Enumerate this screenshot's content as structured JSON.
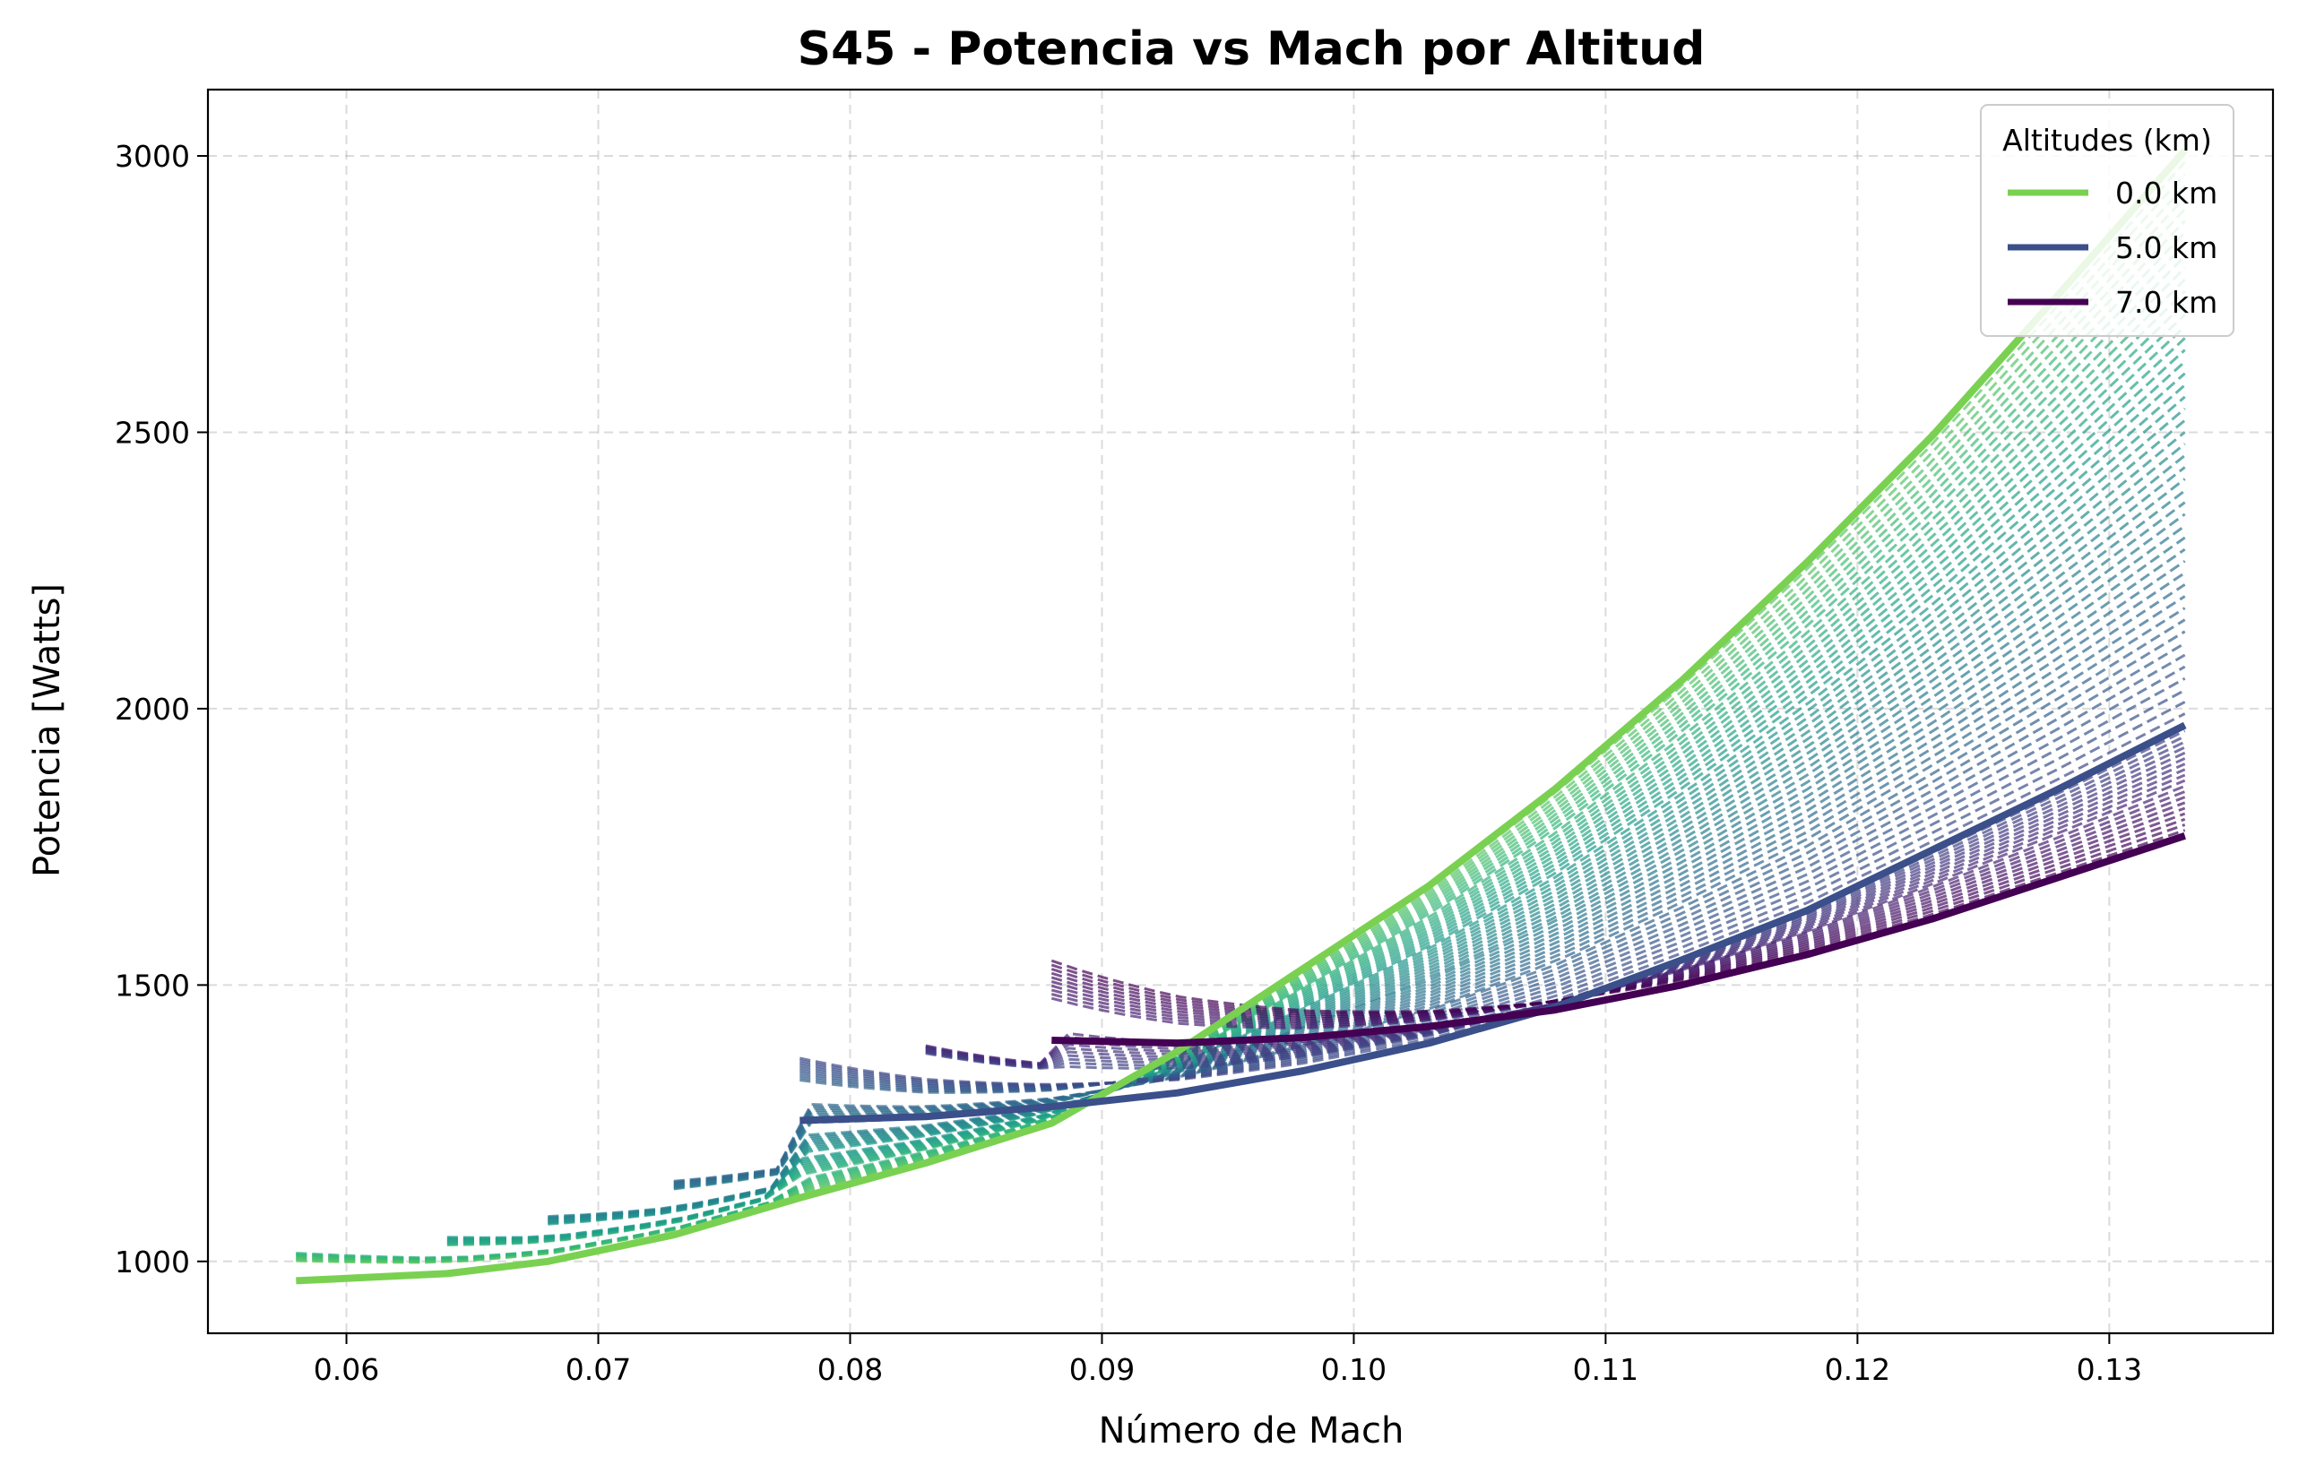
{
  "chart_data": {
    "type": "line",
    "title": "S45 - Potencia vs Mach por Altitud",
    "xlabel": "Número de Mach",
    "ylabel": "Potencia [Watts]",
    "xlim": [
      0.0545,
      0.1365
    ],
    "ylim": [
      870,
      3120
    ],
    "xticks": [
      0.06,
      0.07,
      0.08,
      0.09,
      0.1,
      0.11,
      0.12,
      0.13
    ],
    "xtick_labels": [
      "0.06",
      "0.07",
      "0.08",
      "0.09",
      "0.10",
      "0.11",
      "0.12",
      "0.13"
    ],
    "yticks": [
      1000,
      1500,
      2000,
      2500,
      3000
    ],
    "ytick_labels": [
      "1000",
      "1500",
      "2000",
      "2500",
      "3000"
    ],
    "grid": true,
    "legend": {
      "title": "Altitudes (km)",
      "position": "top-right",
      "entries": [
        {
          "label": "0.0 km",
          "color": "#7ad151"
        },
        {
          "label": "5.0 km",
          "color": "#3b4f8a"
        },
        {
          "label": "7.0 km",
          "color": "#440154"
        }
      ]
    },
    "series": [
      {
        "name": "0.0 km",
        "color": "#7ad151",
        "x": [
          0.058,
          0.064,
          0.068,
          0.073,
          0.078,
          0.083,
          0.088,
          0.093,
          0.098,
          0.103,
          0.108,
          0.113,
          0.118,
          0.123,
          0.128,
          0.133
        ],
        "y": [
          965,
          978,
          1000,
          1048,
          1115,
          1178,
          1250,
          1380,
          1530,
          1680,
          1855,
          2050,
          2265,
          2495,
          2750,
          3010
        ]
      },
      {
        "name": "5.0 km",
        "color": "#3b4f8a",
        "x": [
          0.078,
          0.083,
          0.088,
          0.093,
          0.098,
          0.103,
          0.108,
          0.113,
          0.118,
          0.123,
          0.128,
          0.133
        ],
        "y": [
          1255,
          1262,
          1280,
          1305,
          1345,
          1395,
          1460,
          1545,
          1635,
          1745,
          1855,
          1970
        ]
      },
      {
        "name": "7.0 km",
        "color": "#440154",
        "x": [
          0.088,
          0.093,
          0.098,
          0.103,
          0.108,
          0.113,
          0.118,
          0.123,
          0.128,
          0.133
        ],
        "y": [
          1400,
          1395,
          1405,
          1425,
          1455,
          1500,
          1555,
          1620,
          1695,
          1770
        ]
      }
    ],
    "dashed_series": {
      "count": 70,
      "altitude_range_km": [
        0,
        7
      ],
      "style": "dashed",
      "x_start_min": 0.058,
      "x_start_max": 0.088,
      "x_end": 0.133
    }
  }
}
